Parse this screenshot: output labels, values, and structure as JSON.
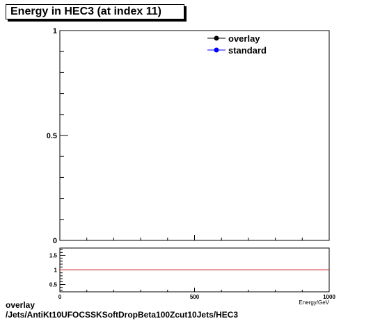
{
  "title": "Energy in HEC3 (at index 11)",
  "footer": {
    "line1": "overlay",
    "line2": "/Jets/AntiKt10UFOCSSKSoftDropBeta100Zcut10Jets/HEC3"
  },
  "chart_data": [
    {
      "type": "line",
      "title": "Energy in HEC3 (at index 11)",
      "xlabel": "Energy/GeV",
      "ylabel": "",
      "xlim": [
        0,
        1000
      ],
      "ylim": [
        0,
        1
      ],
      "y_ticks": [
        {
          "value": 0,
          "label": "0"
        },
        {
          "value": 0.5,
          "label": "0.5"
        },
        {
          "value": 1,
          "label": "1"
        }
      ],
      "legend": {
        "placement": "top-right",
        "entries": [
          {
            "name": "overlay",
            "color": "#000000"
          },
          {
            "name": "standard",
            "color": "#0000ff"
          }
        ]
      },
      "series": [
        {
          "name": "overlay",
          "color": "#000000",
          "x": [],
          "y": []
        },
        {
          "name": "standard",
          "color": "#0000ff",
          "x": [],
          "y": []
        }
      ],
      "grid": false
    },
    {
      "type": "line",
      "title": "",
      "xlabel": "Energy/GeV",
      "xlim": [
        0,
        1000
      ],
      "ylim": [
        0.25,
        1.75
      ],
      "x_ticks": [
        {
          "value": 0,
          "label": "0"
        },
        {
          "value": 500,
          "label": "500"
        },
        {
          "value": 1000,
          "label": "1000"
        }
      ],
      "y_ticks": [
        {
          "value": 0.5,
          "label": "0.5"
        },
        {
          "value": 1,
          "label": "1"
        },
        {
          "value": 1.5,
          "label": "1.5"
        }
      ],
      "reference_line": {
        "y": 1,
        "color": "#cc0000"
      },
      "grid": false
    }
  ]
}
